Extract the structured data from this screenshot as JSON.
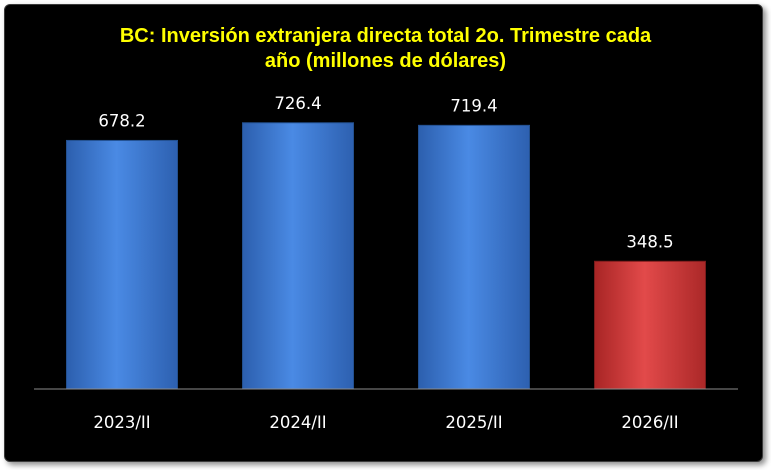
{
  "chart_data": {
    "type": "bar",
    "title_lines": [
      "BC: Inversión extranjera directa total 2o. Trimestre cada",
      "año (millones de dólares)"
    ],
    "categories": [
      "2023/II",
      "2024/II",
      "2025/II",
      "2026/II"
    ],
    "values": [
      678.2,
      726.4,
      719.4,
      348.5
    ],
    "value_labels": [
      "678.2",
      "726.4",
      "719.4",
      "348.5"
    ],
    "colors": {
      "default": "#3e7ad3",
      "highlight": "#d03838",
      "title": "#ffff00",
      "background": "#000000",
      "text": "#ffffff"
    },
    "highlight_index": 3,
    "ylim": [
      0,
      800
    ],
    "grid": false,
    "legend": "none"
  }
}
